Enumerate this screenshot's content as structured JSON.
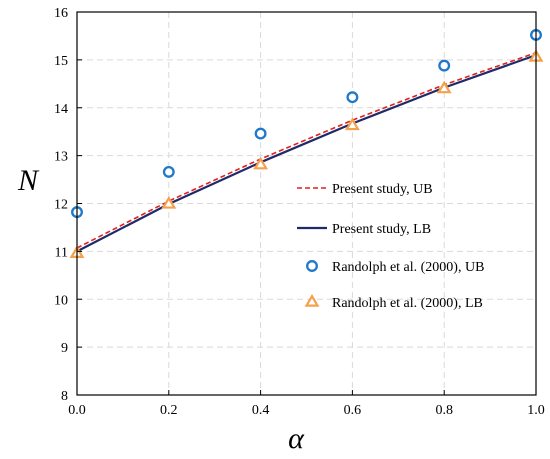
{
  "chart_data": {
    "type": "line",
    "title": "",
    "xlabel": "α",
    "ylabel": "N",
    "xlim": [
      0,
      1
    ],
    "ylim": [
      8,
      16
    ],
    "x_ticks": [
      "0.0",
      "0.2",
      "0.4",
      "0.6",
      "0.8",
      "1.0"
    ],
    "y_ticks": [
      "8",
      "9",
      "10",
      "11",
      "12",
      "13",
      "14",
      "15",
      "16"
    ],
    "grid": true,
    "legend_position": "center-right",
    "series": [
      {
        "name": "Present study, UB",
        "style": "dashed-line",
        "color": "#e0201b",
        "x": [
          0,
          0.2,
          0.4,
          0.6,
          0.8,
          1.0
        ],
        "y": [
          11.07,
          12.05,
          12.93,
          13.74,
          14.48,
          15.15
        ]
      },
      {
        "name": "Present study, LB",
        "style": "solid-line",
        "color": "#1f2a6b",
        "x": [
          0,
          0.2,
          0.4,
          0.6,
          0.8,
          1.0
        ],
        "y": [
          11.0,
          11.99,
          12.86,
          13.67,
          14.42,
          15.1
        ]
      },
      {
        "name": "Randolph et al. (2000), UB",
        "style": "circle-marker",
        "color": "#1f78c8",
        "x": [
          0,
          0.2,
          0.4,
          0.6,
          0.8,
          1.0
        ],
        "y": [
          11.82,
          12.66,
          13.46,
          14.22,
          14.88,
          15.52
        ]
      },
      {
        "name": "Randolph et al. (2000), LB",
        "style": "triangle-marker",
        "color": "#f5a04a",
        "x": [
          0,
          0.2,
          0.4,
          0.6,
          0.8,
          1.0
        ],
        "y": [
          10.96,
          11.99,
          12.81,
          13.63,
          14.4,
          15.06
        ]
      }
    ]
  }
}
